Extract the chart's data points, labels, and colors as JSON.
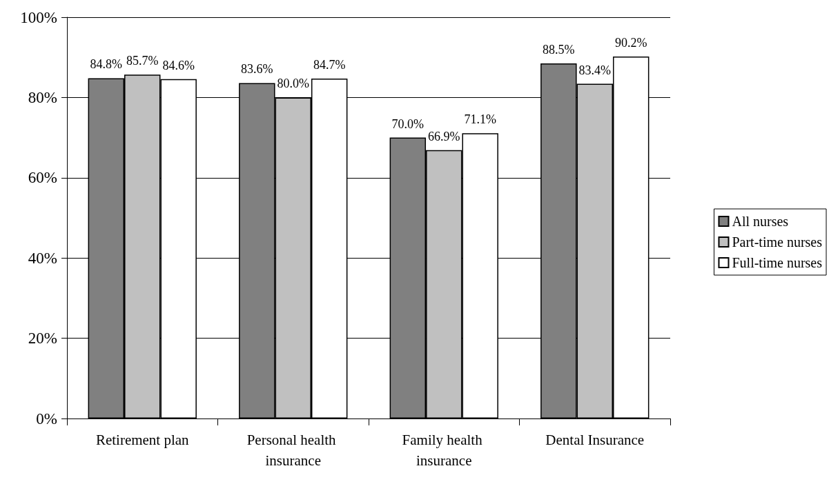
{
  "chart_data": {
    "type": "bar",
    "categories": [
      "Retirement plan",
      "Personal health insurance",
      "Family health insurance",
      "Dental Insurance"
    ],
    "series": [
      {
        "name": "All nurses",
        "color": "#808080",
        "values": [
          84.8,
          83.6,
          70.0,
          88.5
        ],
        "value_labels": [
          "84.8%",
          "83.6%",
          "70.0%",
          "88.5%"
        ]
      },
      {
        "name": "Part-time nurses",
        "color": "#c0c0c0",
        "values": [
          85.7,
          80.0,
          66.9,
          83.4
        ],
        "value_labels": [
          "85.7%",
          "80.0%",
          "66.9%",
          "83.4%"
        ]
      },
      {
        "name": "Full-time nurses",
        "color": "#ffffff",
        "values": [
          84.6,
          84.7,
          71.1,
          90.2
        ],
        "value_labels": [
          "84.6%",
          "84.7%",
          "71.1%",
          "90.2%"
        ]
      }
    ],
    "ylim": [
      0,
      100
    ],
    "yticks": [
      {
        "value": 0,
        "label": "0%"
      },
      {
        "value": 20,
        "label": "20%"
      },
      {
        "value": 40,
        "label": "40%"
      },
      {
        "value": 60,
        "label": "60%"
      },
      {
        "value": 80,
        "label": "80%"
      },
      {
        "value": 100,
        "label": "100%"
      }
    ],
    "grid": "y",
    "legend": "right"
  }
}
